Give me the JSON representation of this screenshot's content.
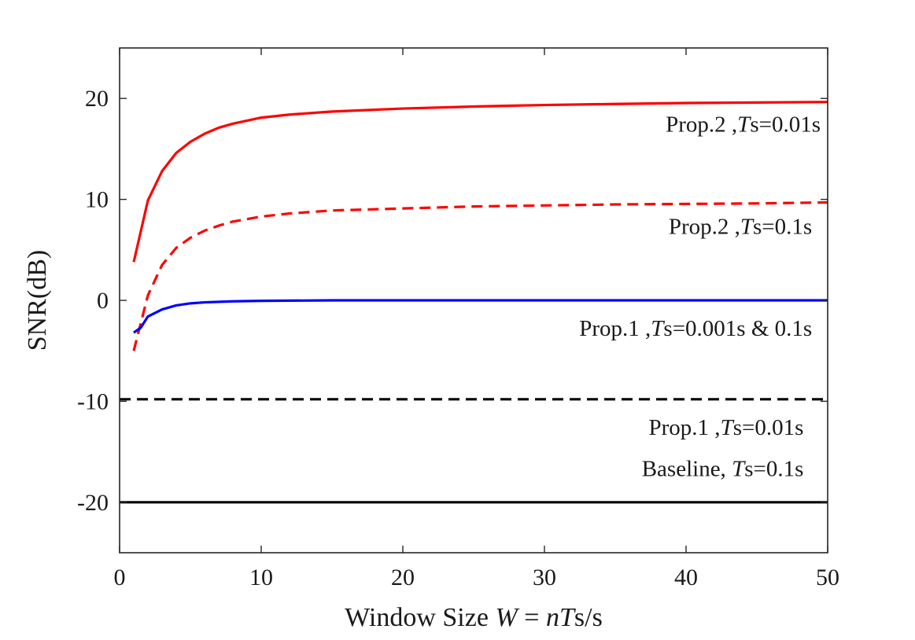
{
  "chart_data": {
    "type": "line",
    "title": "",
    "xlabel": "Window Size W = nTs/s",
    "xlabel_parts": {
      "prefix": "Window Size",
      "w": "W",
      "eq": "=",
      "n": "n",
      "T": "T",
      "s_sub": "s",
      "slash": "/s"
    },
    "ylabel": "SNR(dB)",
    "xlim": [
      0,
      50
    ],
    "ylim": [
      -25,
      25
    ],
    "xticks": [
      0,
      10,
      20,
      30,
      40,
      50
    ],
    "xtick_labels": [
      "0",
      "10",
      "20",
      "30",
      "40",
      "50"
    ],
    "yticks": [
      -20,
      -10,
      0,
      10,
      20
    ],
    "ytick_labels": [
      "-20",
      "-10",
      "0",
      "10",
      "20"
    ],
    "grid": false,
    "series": [
      {
        "name": "Prop.2 ,Ts=0.01s",
        "color": "#ff0000",
        "style": "solid",
        "x": [
          1,
          2,
          3,
          4,
          5,
          6,
          7,
          8,
          9,
          10,
          12,
          15,
          20,
          25,
          30,
          35,
          40,
          45,
          50
        ],
        "y": [
          3.8,
          9.9,
          12.8,
          14.6,
          15.7,
          16.5,
          17.1,
          17.5,
          17.8,
          18.1,
          18.4,
          18.7,
          19.0,
          19.2,
          19.35,
          19.45,
          19.55,
          19.6,
          19.65
        ]
      },
      {
        "name": "Prop.2 ,Ts=0.1s",
        "color": "#ff0000",
        "style": "dashed",
        "x": [
          1,
          2,
          3,
          4,
          5,
          6,
          7,
          8,
          10,
          12,
          15,
          20,
          25,
          30,
          35,
          40,
          45,
          50
        ],
        "y": [
          -5.0,
          0.5,
          3.5,
          5.2,
          6.2,
          6.9,
          7.4,
          7.8,
          8.3,
          8.6,
          8.9,
          9.1,
          9.3,
          9.4,
          9.5,
          9.55,
          9.6,
          9.7
        ]
      },
      {
        "name": "Prop.1 ,Ts=0.001s & 0.1s",
        "color": "#0000ff",
        "style": "solid",
        "x": [
          1,
          1.5,
          2,
          3,
          4,
          5,
          6,
          8,
          10,
          15,
          20,
          30,
          40,
          50
        ],
        "y": [
          -3.2,
          -2.7,
          -1.6,
          -0.9,
          -0.5,
          -0.3,
          -0.2,
          -0.1,
          -0.05,
          0.0,
          0.0,
          0.0,
          0.0,
          0.0
        ]
      },
      {
        "name": "Prop.1 ,Ts=0.01s",
        "color": "#000000",
        "style": "dashed",
        "x": [
          0,
          50
        ],
        "y": [
          -9.8,
          -9.8
        ]
      },
      {
        "name": "Baseline, Ts=0.1s",
        "color": "#000000",
        "style": "solid",
        "x": [
          0,
          50
        ],
        "y": [
          -20,
          -20
        ]
      }
    ],
    "annotations": [
      {
        "series": 0,
        "parts": [
          "Prop.2 ,",
          "T",
          "s=0.01s"
        ],
        "x": 49.5,
        "y": 16.7
      },
      {
        "series": 1,
        "parts": [
          "Prop.2 ,",
          "T",
          "s=0.1s"
        ],
        "x": 48.9,
        "y": 6.6
      },
      {
        "series": 2,
        "parts": [
          "Prop.1 ,",
          "T",
          "s=0.001s & 0.1s"
        ],
        "x": 48.9,
        "y": -3.5
      },
      {
        "series": 3,
        "parts": [
          "Prop.1 ,",
          "T",
          "s=0.01s"
        ],
        "x": 48.3,
        "y": -13.3
      },
      {
        "series": 4,
        "parts": [
          "Baseline, ",
          "T",
          "s=0.1s"
        ],
        "x": 48.3,
        "y": -17.4
      }
    ]
  }
}
